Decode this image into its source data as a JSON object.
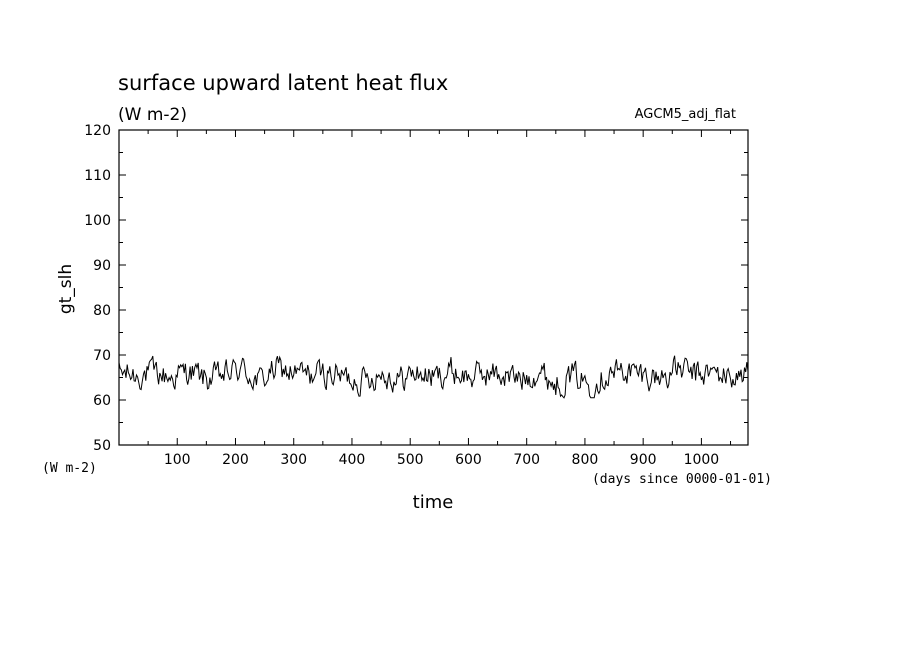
{
  "chart_data": {
    "type": "line",
    "title": "surface upward latent heat flux",
    "subtitle": "(W m-2)",
    "run_label": "AGCM5_adj_flat",
    "xlabel": "time",
    "x_units": "(days since 0000-01-01)",
    "ylabel": "gt_slh",
    "y_units": "(W m-2)",
    "xlim": [
      0,
      1080
    ],
    "ylim": [
      50,
      120
    ],
    "x_ticks": [
      100,
      200,
      300,
      400,
      500,
      600,
      700,
      800,
      900,
      1000
    ],
    "y_ticks": [
      50,
      60,
      70,
      80,
      90,
      100,
      110,
      120
    ],
    "grid": false,
    "line_color": "#000000",
    "series": [
      {
        "x": [
          0,
          30,
          60,
          90,
          120,
          150,
          180,
          210,
          240,
          270,
          300,
          330,
          360,
          390,
          420,
          450,
          480,
          510,
          540,
          570,
          600,
          630,
          660,
          690,
          720,
          750,
          780,
          810,
          840,
          870,
          900,
          930,
          960,
          990,
          1020,
          1050,
          1080
        ],
        "values": [
          66,
          65.5,
          66,
          65,
          66.5,
          64.5,
          65.5,
          67,
          64,
          67,
          66,
          65.5,
          66,
          65,
          64.5,
          66,
          64.5,
          66,
          65,
          66.5,
          65,
          66,
          65.5,
          64.5,
          66.5,
          63.5,
          65.5,
          63.5,
          66,
          66.5,
          65.5,
          65,
          67,
          65.5,
          66,
          65,
          66
        ]
      }
    ]
  }
}
